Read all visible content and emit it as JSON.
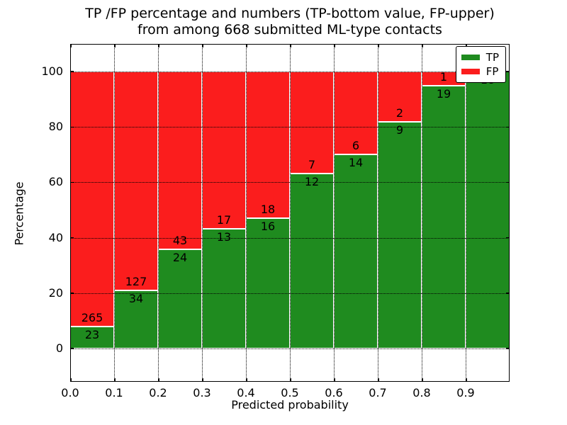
{
  "chart_data": {
    "type": "bar",
    "stacked": true,
    "title_line1": "TP /FP percentage and numbers (TP-bottom value, FP-upper)",
    "title_line2": "from among 668 submitted ML-type contacts",
    "xlabel": "Predicted probability",
    "ylabel": "Percentage",
    "total_submitted": 668,
    "bin_width": 0.1,
    "categories": [
      "0.0-0.1",
      "0.1-0.2",
      "0.2-0.3",
      "0.3-0.4",
      "0.4-0.5",
      "0.5-0.6",
      "0.6-0.7",
      "0.7-0.8",
      "0.8-0.9",
      "0.9-1.0"
    ],
    "series": [
      {
        "name": "TP",
        "color": "#1f8b1f",
        "values": [
          23,
          34,
          24,
          13,
          16,
          12,
          14,
          9,
          19,
          18
        ]
      },
      {
        "name": "FP",
        "color": "#fb1d1d",
        "values": [
          265,
          127,
          43,
          17,
          18,
          7,
          6,
          2,
          1,
          0
        ]
      }
    ],
    "tp_percentages": [
      7.99,
      21.12,
      35.82,
      43.33,
      47.06,
      63.16,
      70.0,
      81.82,
      95.0,
      100.0
    ],
    "x_tick_labels": [
      "0.0",
      "0.1",
      "0.2",
      "0.3",
      "0.4",
      "0.5",
      "0.6",
      "0.7",
      "0.8",
      "0.9"
    ],
    "y_tick_values": [
      0,
      20,
      40,
      60,
      80,
      100
    ],
    "xlim": [
      0.0,
      1.0
    ],
    "ylim": [
      -12,
      110
    ],
    "grid": "dotted",
    "legend": {
      "position": "upper right",
      "entries": [
        {
          "label": "TP",
          "color": "#1f8b1f"
        },
        {
          "label": "FP",
          "color": "#fb1d1d"
        }
      ]
    }
  }
}
